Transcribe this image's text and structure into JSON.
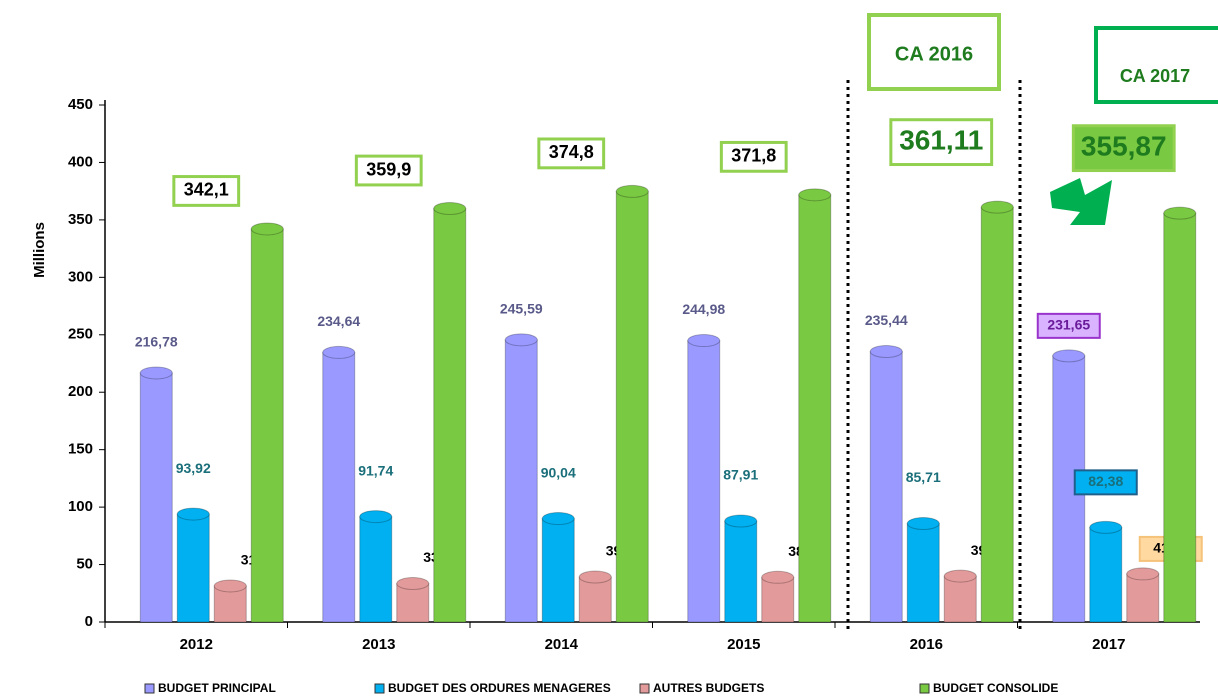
{
  "chart_data": {
    "type": "bar",
    "ylabel": "Millions",
    "categories": [
      "2012",
      "2013",
      "2014",
      "2015",
      "2016",
      "2017"
    ],
    "series": [
      {
        "name": "BUDGET PRINCIPAL",
        "color": "#9999ff",
        "values": [
          216.78,
          234.64,
          245.59,
          244.98,
          235.44,
          231.65
        ],
        "value_labels": [
          "216,78",
          "234,64",
          "245,59",
          "244,98",
          "235,44",
          "231,65"
        ]
      },
      {
        "name": "BUDGET DES ORDURES MENAGERES",
        "color": "#00b0f0",
        "values": [
          93.92,
          91.74,
          90.04,
          87.91,
          85.71,
          82.38
        ],
        "value_labels": [
          "93,92",
          "91,74",
          "90,04",
          "87,91",
          "85,71",
          "82,38"
        ]
      },
      {
        "name": "AUTRES BUDGETS",
        "color": "#e39a9a",
        "values": [
          31.37,
          33.48,
          39.15,
          38.91,
          39.96,
          41.85
        ],
        "value_labels": [
          "31,37",
          "33,48",
          "39,15",
          "38,91",
          "39,96",
          "41,85"
        ]
      },
      {
        "name": "BUDGET CONSOLIDE",
        "color": "#7ac943",
        "values": [
          342.1,
          359.9,
          374.8,
          371.8,
          361.11,
          355.87
        ],
        "value_labels": [
          "342,1",
          "359,9",
          "374,8",
          "371,8",
          "361,11",
          "355,87"
        ]
      }
    ],
    "annotations": [
      "CA 2016",
      "CA 2017"
    ],
    "ylim": [
      0,
      450
    ],
    "yticks": [
      0,
      50,
      100,
      150,
      200,
      250,
      300,
      350,
      400,
      450
    ],
    "legend": "bottom"
  }
}
